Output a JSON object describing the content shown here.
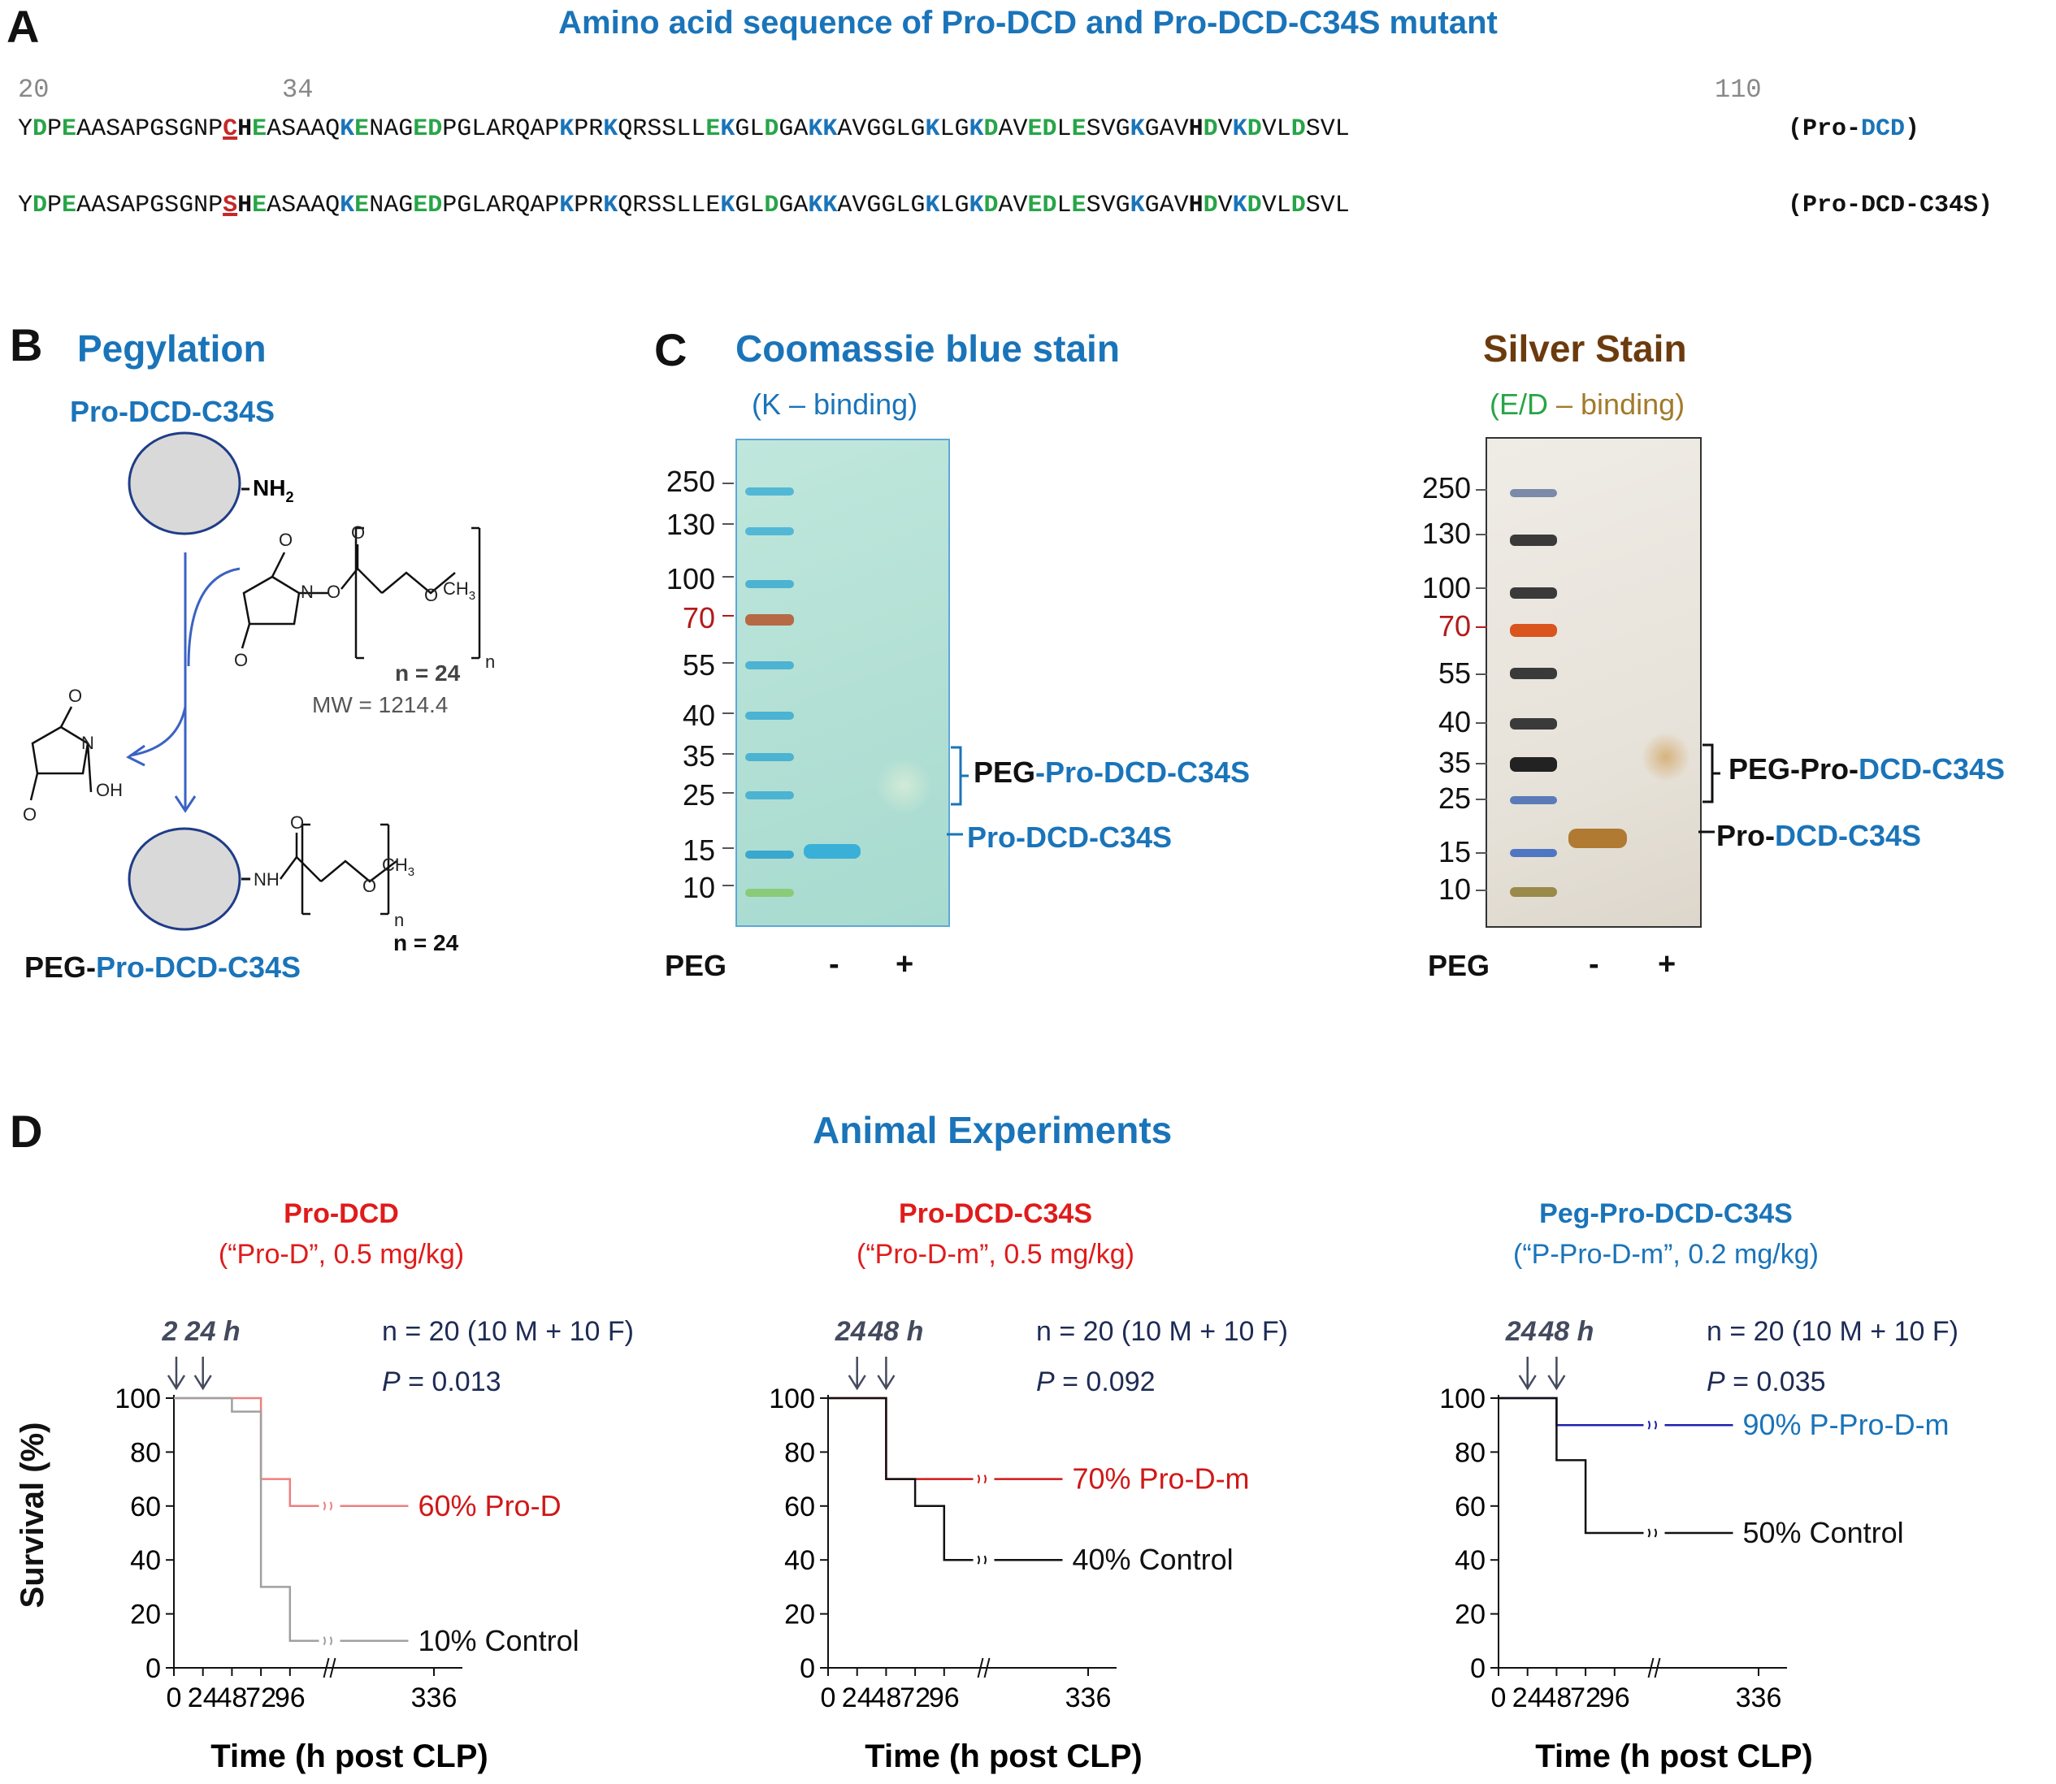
{
  "panel_a": {
    "letter": "A",
    "title": "Amino acid sequence of Pro-DCD and Pro-DCD-C34S mutant",
    "pos_start": "20",
    "pos_mut": "34",
    "pos_end": "110",
    "seq1_label_a": "(Pro-",
    "seq1_label_b": "DCD",
    "seq1_label_c": ")",
    "seq2_label": "(Pro-DCD-C34S)"
  },
  "panel_b": {
    "letter": "B",
    "title": "Pegylation",
    "protein_name": "Pro-DCD-C34S",
    "nh2": "NH",
    "nh2_sub": "2",
    "reagent_n": "n = 24",
    "reagent_mw": "MW = 1214.4",
    "product_n": "n = 24",
    "product_prefix": "PEG-",
    "product_name": "Pro-DCD-C34S",
    "atoms": {
      "o": "O",
      "n": "N",
      "oh": "OH",
      "nh": "NH",
      "ch3": "CH",
      "ch3_sub": "3",
      "n_sub": "n"
    }
  },
  "panel_c": {
    "letter": "C",
    "coomassie_title": "Coomassie blue stain",
    "coomassie_sub": "(K – binding)",
    "silver_title": "Silver Stain",
    "silver_sub_a": "(E/D",
    "silver_sub_b": " – binding)",
    "markers": [
      "250",
      "130",
      "100",
      "70",
      "55",
      "40",
      "35",
      "25",
      "15",
      "10"
    ],
    "lane_label": "PEG",
    "lane_minus": "-",
    "lane_plus": "+",
    "coomassie_band_peg_a": "PEG",
    "coomassie_band_peg_b": "-Pro-DCD-C34S",
    "coomassie_band_pro": "Pro-DCD-C34S",
    "silver_band_peg_a": "PEG-Pro-",
    "silver_band_peg_b": "DCD-C34S",
    "silver_band_pro_a": "Pro-",
    "silver_band_pro_b": "DCD-C34S",
    "colors": {
      "marker_red": "#b31b1b",
      "silver_title": "#6b3b0e",
      "silver_sub": "#a27a2a",
      "ed_green": "#27a548"
    }
  },
  "panel_d": {
    "letter": "D",
    "title": "Animal Experiments",
    "ylabel": "Survival (%)",
    "xlabel": "Time (h post CLP)",
    "charts": [
      {
        "title": "Pro-DCD",
        "subtitle": "(“Pro-D”, 0.5 mg/kg)",
        "title_color": "#e01b1b",
        "dose_times_a": "2",
        "dose_times_b": "24 h",
        "n_text": "n = 20  (10 M + 10 F)",
        "p_label": "P",
        "p_value": " = 0.013",
        "treated_label": "60% Pro-D",
        "control_label": "10% Control",
        "treated_color": "#ee8080",
        "control_color": "#a0a0a0"
      },
      {
        "title": "Pro-DCD-C34S",
        "subtitle": "(“Pro-D-m”, 0.5 mg/kg)",
        "title_color": "#e01b1b",
        "dose_times_a": "24",
        "dose_times_b": "48 h",
        "n_text": "n = 20  (10 M + 10 F)",
        "p_label": "P",
        "p_value": " = 0.092",
        "treated_label": "70% Pro-D-m",
        "control_label": "40% Control",
        "treated_color": "#d01818",
        "control_color": "#111111"
      },
      {
        "title": "Peg-Pro-DCD-C34S",
        "subtitle": "(“P-Pro-D-m”, 0.2 mg/kg)",
        "title_color": "#1a74b9",
        "dose_times_a": "24",
        "dose_times_b": "48 h",
        "n_text": "n = 20  (10 M + 10 F)",
        "p_label": "P",
        "p_value": " = 0.035",
        "treated_label": "90% P-Pro-D-m",
        "control_label": "50% Control",
        "treated_color": "#1f1fb0",
        "control_color": "#111111"
      }
    ]
  },
  "chart_data": [
    {
      "type": "line",
      "title": "Pro-DCD",
      "xlabel": "Time (h post CLP)",
      "ylabel": "Survival (%)",
      "xticks": [
        "0",
        "24",
        "48",
        "72",
        "96",
        "336"
      ],
      "yticks": [
        "0",
        "20",
        "40",
        "60",
        "80",
        "100"
      ],
      "ylim": [
        0,
        100
      ],
      "series": [
        {
          "name": "60% Pro-D",
          "x": [
            0,
            72,
            72,
            96,
            96,
            120
          ],
          "y": [
            100,
            100,
            70,
            70,
            60,
            60
          ]
        },
        {
          "name": "10% Control",
          "x": [
            0,
            48,
            48,
            72,
            72,
            96,
            96,
            120
          ],
          "y": [
            100,
            100,
            95,
            95,
            30,
            30,
            10,
            10
          ]
        }
      ]
    },
    {
      "type": "line",
      "title": "Pro-DCD-C34S",
      "xlabel": "Time (h post CLP)",
      "ylabel": "Survival (%)",
      "xticks": [
        "0",
        "24",
        "48",
        "72",
        "96",
        "336"
      ],
      "yticks": [
        "0",
        "20",
        "40",
        "60",
        "80",
        "100"
      ],
      "ylim": [
        0,
        100
      ],
      "series": [
        {
          "name": "70% Pro-D-m",
          "x": [
            0,
            48,
            48,
            120
          ],
          "y": [
            100,
            100,
            70,
            70
          ]
        },
        {
          "name": "40% Control",
          "x": [
            0,
            48,
            48,
            72,
            72,
            96,
            96,
            120
          ],
          "y": [
            100,
            100,
            70,
            70,
            60,
            60,
            40,
            40
          ]
        }
      ]
    },
    {
      "type": "line",
      "title": "Peg-Pro-DCD-C34S",
      "xlabel": "Time (h post CLP)",
      "ylabel": "Survival (%)",
      "xticks": [
        "0",
        "24",
        "48",
        "72",
        "96",
        "336"
      ],
      "yticks": [
        "0",
        "20",
        "40",
        "60",
        "80",
        "100"
      ],
      "ylim": [
        0,
        100
      ],
      "series": [
        {
          "name": "90% P-Pro-D-m",
          "x": [
            0,
            48,
            48,
            120
          ],
          "y": [
            100,
            100,
            90,
            90
          ]
        },
        {
          "name": "50% Control",
          "x": [
            0,
            48,
            48,
            72,
            72,
            120
          ],
          "y": [
            100,
            100,
            77,
            77,
            50,
            50
          ]
        }
      ]
    }
  ]
}
